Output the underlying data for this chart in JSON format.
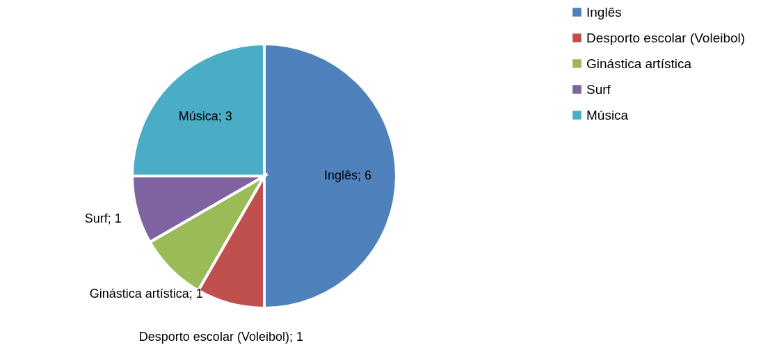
{
  "chart_data": {
    "type": "pie",
    "categories": [
      "Inglês",
      "Desporto escolar (Voleibol)",
      "Ginástica artística",
      "Surf",
      "Música"
    ],
    "values": [
      6,
      1,
      1,
      1,
      3
    ],
    "colors": [
      "#4f81bd",
      "#c0504d",
      "#9bbb59",
      "#8064a2",
      "#4bacc6"
    ],
    "value_labels": [
      "Inglês; 6",
      "Desporto escolar (Voleibol); 1",
      "Ginástica artística; 1",
      "Surf; 1",
      "Música; 3"
    ],
    "legend": "right"
  }
}
